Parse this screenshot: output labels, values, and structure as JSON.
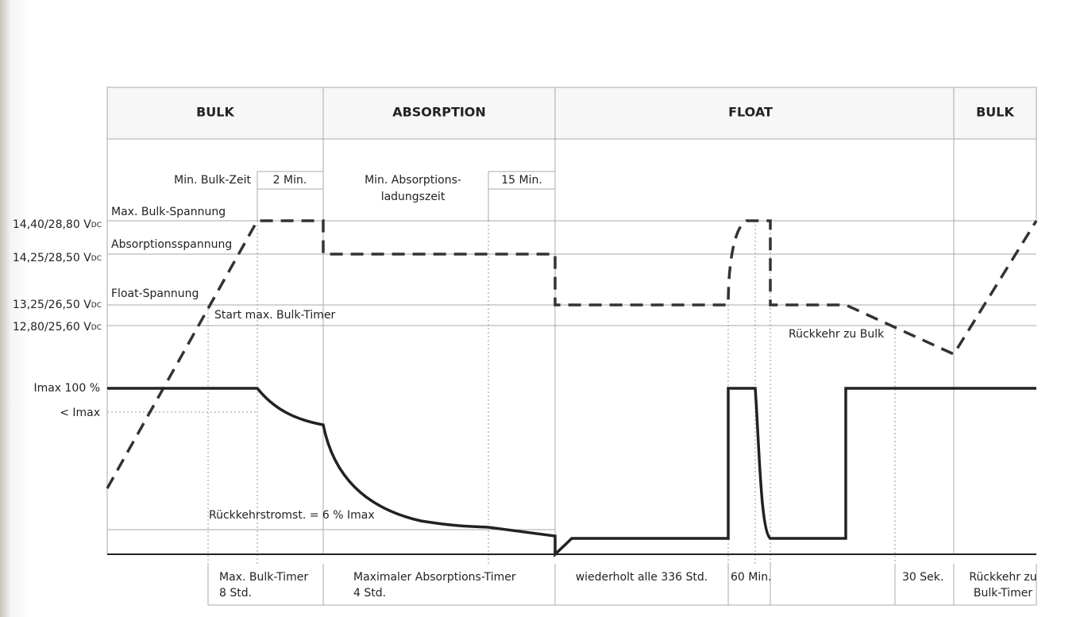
{
  "phases": [
    "BULK",
    "ABSORPTION",
    "FLOAT",
    "BULK"
  ],
  "top_labels": {
    "min_bulk_time": "Min. Bulk-Zeit",
    "min_bulk_value": "2 Min.",
    "min_absorption_time": [
      "Min. Absorptions-",
      "ladungszeit"
    ],
    "min_absorption_value": "15 Min."
  },
  "voltage_levels": [
    {
      "main": "14,40/28,80 V",
      "sub": "DC"
    },
    {
      "main": "14,25/28,50 V",
      "sub": "DC"
    },
    {
      "main": "13,25/26,50 V",
      "sub": "DC"
    },
    {
      "main": "12,80/25,60 V",
      "sub": "DC"
    }
  ],
  "current_levels": [
    "Imax 100 %",
    "< Imax"
  ],
  "inner_labels": {
    "max_bulk_voltage": "Max. Bulk-Spannung",
    "absorption_voltage": "Absorptionsspannung",
    "float_voltage": "Float-Spannung",
    "start_bulk_timer": "Start max. Bulk-Timer",
    "return_to_bulk": "Rückkehr zu Bulk",
    "return_current": "Rückkehrstromst. = 6 % Imax"
  },
  "bottom_labels": [
    [
      "Max. Bulk-Timer",
      "8 Std."
    ],
    [
      "Maximaler Absorptions-Timer",
      "4 Std."
    ],
    [
      "wiederholt alle 336 Std."
    ],
    [
      "60 Min."
    ],
    [
      "30 Sek."
    ],
    [
      "Rückkehr zu",
      "Bulk-Timer"
    ]
  ]
}
